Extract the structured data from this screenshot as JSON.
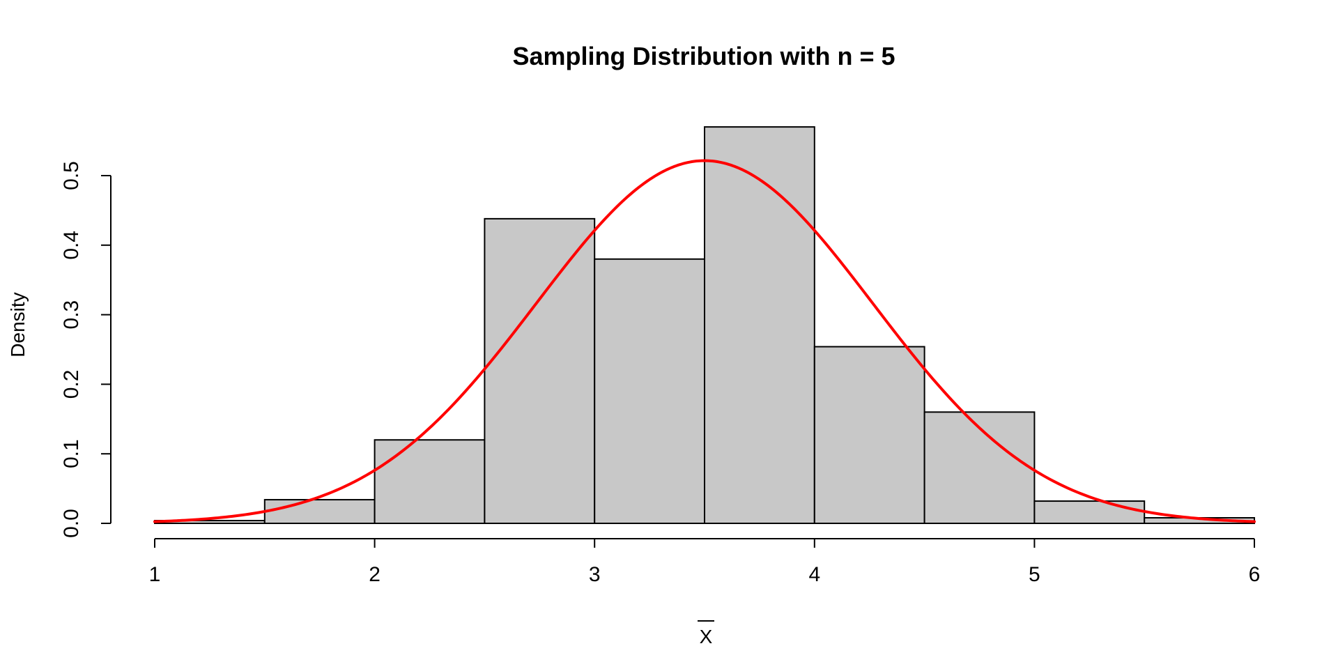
{
  "chart_data": {
    "type": "bar",
    "title": "Sampling Distribution with n = 5",
    "xlabel": "X",
    "xlabel_overline": true,
    "ylabel": "Density",
    "xlim": [
      1,
      6
    ],
    "ylim": [
      0,
      0.5
    ],
    "x_ticks": [
      1,
      2,
      3,
      4,
      5,
      6
    ],
    "x_tick_labels": [
      "1",
      "2",
      "3",
      "4",
      "5",
      "6"
    ],
    "y_ticks": [
      0.0,
      0.1,
      0.2,
      0.3,
      0.4,
      0.5
    ],
    "y_tick_labels": [
      "0.0",
      "0.1",
      "0.2",
      "0.3",
      "0.4",
      "0.5"
    ],
    "bin_edges": [
      1.0,
      1.5,
      2.0,
      2.5,
      3.0,
      3.5,
      4.0,
      4.5,
      5.0,
      5.5,
      6.0
    ],
    "values": [
      0.004,
      0.034,
      0.12,
      0.438,
      0.38,
      0.57,
      0.254,
      0.16,
      0.032,
      0.008
    ],
    "curve": {
      "kind": "normal-density",
      "mean": 3.5,
      "sd": 0.765
    },
    "grid": false,
    "colors": {
      "bar_fill": "#c8c8c8",
      "bar_stroke": "#000000",
      "curve": "#ff0000"
    }
  }
}
